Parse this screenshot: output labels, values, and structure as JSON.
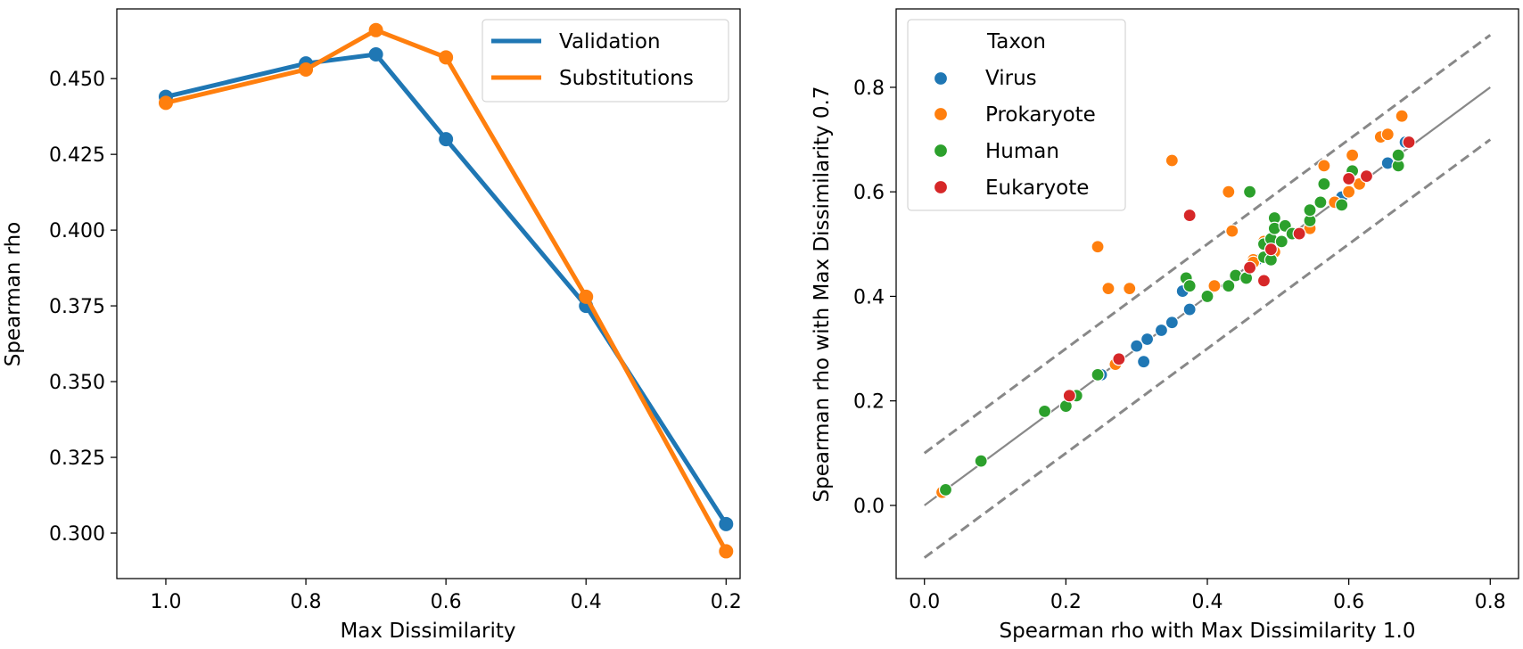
{
  "colors": {
    "blue": "#1f77b4",
    "orange": "#ff7f0e",
    "green": "#2ca02c",
    "red": "#d62728",
    "reference": "#888888"
  },
  "chart_data": [
    {
      "type": "line",
      "xlabel": "Max Dissimilarity",
      "ylabel": "Spearman rho",
      "x_tick_labels": [
        "1.0",
        "0.8",
        "0.7",
        "0.6",
        "0.4",
        "0.2"
      ],
      "y_tick_labels": [
        "0.450",
        "0.425",
        "0.400",
        "0.375",
        "0.350",
        "0.325",
        "0.300"
      ],
      "y_ticks": [
        0.45,
        0.425,
        0.4,
        0.375,
        0.35,
        0.325,
        0.3
      ],
      "x_ticks": [
        1.0,
        0.8,
        0.6,
        0.4,
        0.2
      ],
      "xlim": [
        1.07,
        0.18
      ],
      "ylim": [
        0.285,
        0.473
      ],
      "x_reversed": true,
      "grid": false,
      "legend_position": "top-right",
      "x": [
        1.0,
        0.8,
        0.7,
        0.6,
        0.4,
        0.2
      ],
      "series": [
        {
          "name": "Validation",
          "color": "#1f77b4",
          "values": [
            0.444,
            0.455,
            0.458,
            0.43,
            0.375,
            0.303
          ]
        },
        {
          "name": "Substitutions",
          "color": "#ff7f0e",
          "values": [
            0.442,
            0.453,
            0.466,
            0.457,
            0.378,
            0.294
          ]
        }
      ]
    },
    {
      "type": "scatter",
      "xlabel": "Spearman rho with Max Dissimilarity 1.0",
      "ylabel": "Spearman rho with Max Dissimilarity 0.7",
      "x_tick_labels": [
        "0.0",
        "0.2",
        "0.4",
        "0.6",
        "0.8"
      ],
      "y_tick_labels": [
        "0.0",
        "0.2",
        "0.4",
        "0.6",
        "0.8"
      ],
      "x_ticks": [
        0.0,
        0.2,
        0.4,
        0.6,
        0.8
      ],
      "y_ticks": [
        0.0,
        0.2,
        0.4,
        0.6,
        0.8
      ],
      "xlim": [
        -0.04,
        0.84
      ],
      "ylim": [
        -0.14,
        0.95
      ],
      "grid": false,
      "legend_title": "Taxon",
      "legend_position": "top-left",
      "reference_lines": [
        {
          "style": "solid",
          "from": [
            0.0,
            0.0
          ],
          "to": [
            0.8,
            0.8
          ]
        },
        {
          "style": "dashed",
          "from": [
            0.0,
            0.1
          ],
          "to": [
            0.8,
            0.9
          ]
        },
        {
          "style": "dashed",
          "from": [
            0.0,
            -0.1
          ],
          "to": [
            0.8,
            0.7
          ]
        }
      ],
      "series": [
        {
          "name": "Virus",
          "color": "#1f77b4",
          "points": [
            [
              0.025,
              0.025
            ],
            [
              0.25,
              0.25
            ],
            [
              0.3,
              0.305
            ],
            [
              0.315,
              0.318
            ],
            [
              0.335,
              0.335
            ],
            [
              0.35,
              0.35
            ],
            [
              0.365,
              0.41
            ],
            [
              0.375,
              0.375
            ],
            [
              0.31,
              0.275
            ],
            [
              0.52,
              0.52
            ],
            [
              0.545,
              0.545
            ],
            [
              0.59,
              0.59
            ],
            [
              0.655,
              0.655
            ],
            [
              0.68,
              0.695
            ],
            [
              0.47,
              0.47
            ]
          ]
        },
        {
          "name": "Prokaryote",
          "color": "#ff7f0e",
          "points": [
            [
              0.025,
              0.025
            ],
            [
              0.245,
              0.495
            ],
            [
              0.26,
              0.415
            ],
            [
              0.29,
              0.415
            ],
            [
              0.35,
              0.66
            ],
            [
              0.43,
              0.6
            ],
            [
              0.435,
              0.525
            ],
            [
              0.41,
              0.42
            ],
            [
              0.465,
              0.47
            ],
            [
              0.48,
              0.505
            ],
            [
              0.495,
              0.485
            ],
            [
              0.545,
              0.53
            ],
            [
              0.565,
              0.65
            ],
            [
              0.58,
              0.58
            ],
            [
              0.6,
              0.6
            ],
            [
              0.605,
              0.67
            ],
            [
              0.615,
              0.615
            ],
            [
              0.645,
              0.705
            ],
            [
              0.655,
              0.71
            ],
            [
              0.675,
              0.745
            ],
            [
              0.27,
              0.27
            ],
            [
              0.465,
              0.465
            ]
          ]
        },
        {
          "name": "Human",
          "color": "#2ca02c",
          "points": [
            [
              0.03,
              0.03
            ],
            [
              0.08,
              0.085
            ],
            [
              0.17,
              0.18
            ],
            [
              0.2,
              0.19
            ],
            [
              0.215,
              0.21
            ],
            [
              0.245,
              0.25
            ],
            [
              0.37,
              0.435
            ],
            [
              0.375,
              0.42
            ],
            [
              0.4,
              0.4
            ],
            [
              0.43,
              0.42
            ],
            [
              0.44,
              0.44
            ],
            [
              0.455,
              0.435
            ],
            [
              0.46,
              0.6
            ],
            [
              0.48,
              0.475
            ],
            [
              0.48,
              0.5
            ],
            [
              0.49,
              0.51
            ],
            [
              0.49,
              0.47
            ],
            [
              0.495,
              0.55
            ],
            [
              0.495,
              0.53
            ],
            [
              0.505,
              0.505
            ],
            [
              0.51,
              0.535
            ],
            [
              0.52,
              0.52
            ],
            [
              0.545,
              0.545
            ],
            [
              0.545,
              0.565
            ],
            [
              0.56,
              0.58
            ],
            [
              0.565,
              0.615
            ],
            [
              0.59,
              0.575
            ],
            [
              0.605,
              0.64
            ],
            [
              0.67,
              0.65
            ],
            [
              0.67,
              0.67
            ]
          ]
        },
        {
          "name": "Eukaryote",
          "color": "#d62728",
          "points": [
            [
              0.205,
              0.21
            ],
            [
              0.275,
              0.28
            ],
            [
              0.375,
              0.555
            ],
            [
              0.46,
              0.455
            ],
            [
              0.48,
              0.43
            ],
            [
              0.49,
              0.49
            ],
            [
              0.53,
              0.52
            ],
            [
              0.6,
              0.625
            ],
            [
              0.625,
              0.63
            ],
            [
              0.685,
              0.695
            ]
          ]
        }
      ]
    }
  ]
}
